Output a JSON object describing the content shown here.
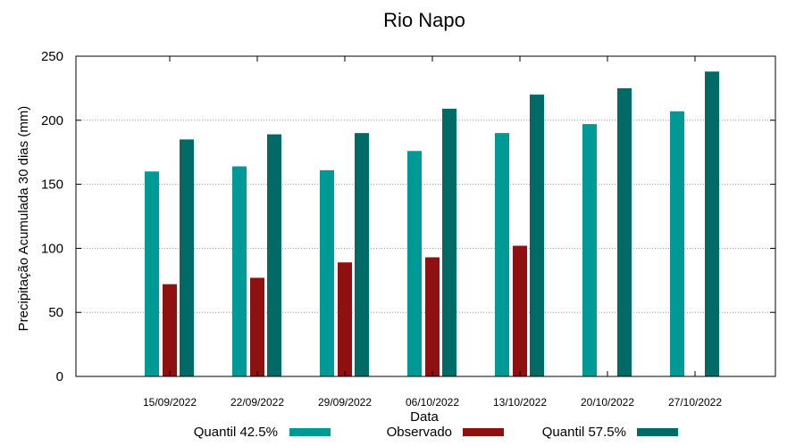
{
  "chart_data": {
    "type": "bar",
    "title": "Rio Napo",
    "xlabel": "Data",
    "ylabel": "Precipitação Acumulada 30 dias (mm)",
    "ylim": [
      0,
      250
    ],
    "yticks": [
      0,
      50,
      100,
      150,
      200,
      250
    ],
    "grid": true,
    "categories": [
      "15/09/2022",
      "22/09/2022",
      "29/09/2022",
      "06/10/2022",
      "13/10/2022",
      "20/10/2022",
      "27/10/2022"
    ],
    "series": [
      {
        "name": "Quantil 42.5%",
        "color": "#009a96",
        "values": [
          160,
          164,
          161,
          176,
          190,
          197,
          207
        ]
      },
      {
        "name": "Observado",
        "color": "#8e1010",
        "values": [
          72,
          77,
          89,
          93,
          102,
          null,
          null
        ]
      },
      {
        "name": "Quantil 57.5%",
        "color": "#006a66",
        "values": [
          185,
          189,
          190,
          209,
          220,
          225,
          238
        ]
      }
    ],
    "legend": "bottom"
  }
}
